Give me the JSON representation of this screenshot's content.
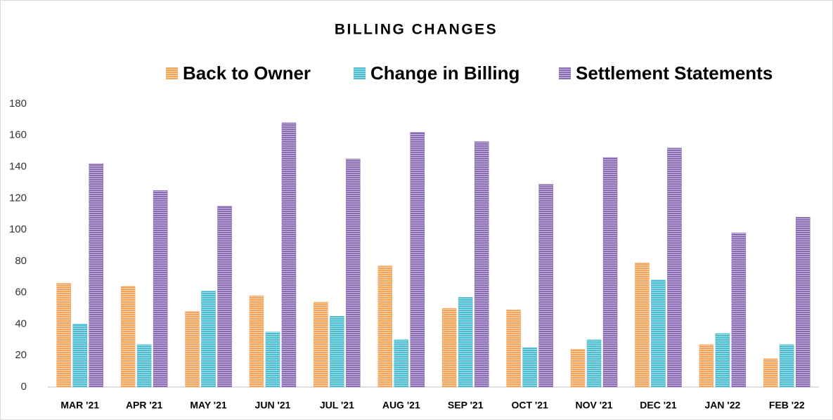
{
  "chart_data": {
    "type": "bar",
    "title": "BILLING CHANGES",
    "categories": [
      "MAR '21",
      "APR '21",
      "MAY '21",
      "JUN '21",
      "JUL '21",
      "AUG '21",
      "SEP '21",
      "OCT '21",
      "NOV '21",
      "DEC '21",
      "JAN '22",
      "FEB '22"
    ],
    "series": [
      {
        "name": "Back to Owner",
        "color": "#f5a55a",
        "values": [
          66,
          64,
          48,
          58,
          54,
          77,
          50,
          49,
          24,
          79,
          27,
          18
        ]
      },
      {
        "name": "Change in Billing",
        "color": "#4bbcd0",
        "values": [
          40,
          27,
          61,
          35,
          45,
          30,
          57,
          25,
          30,
          68,
          34,
          27
        ]
      },
      {
        "name": "Settlement Statements",
        "color": "#8a6bb3",
        "values": [
          142,
          125,
          115,
          168,
          145,
          162,
          156,
          129,
          146,
          152,
          98,
          108
        ]
      }
    ],
    "ylim": [
      0,
      180
    ],
    "yticks": [
      0,
      20,
      40,
      60,
      80,
      100,
      120,
      140,
      160,
      180
    ],
    "grid": false,
    "legend": "top"
  }
}
